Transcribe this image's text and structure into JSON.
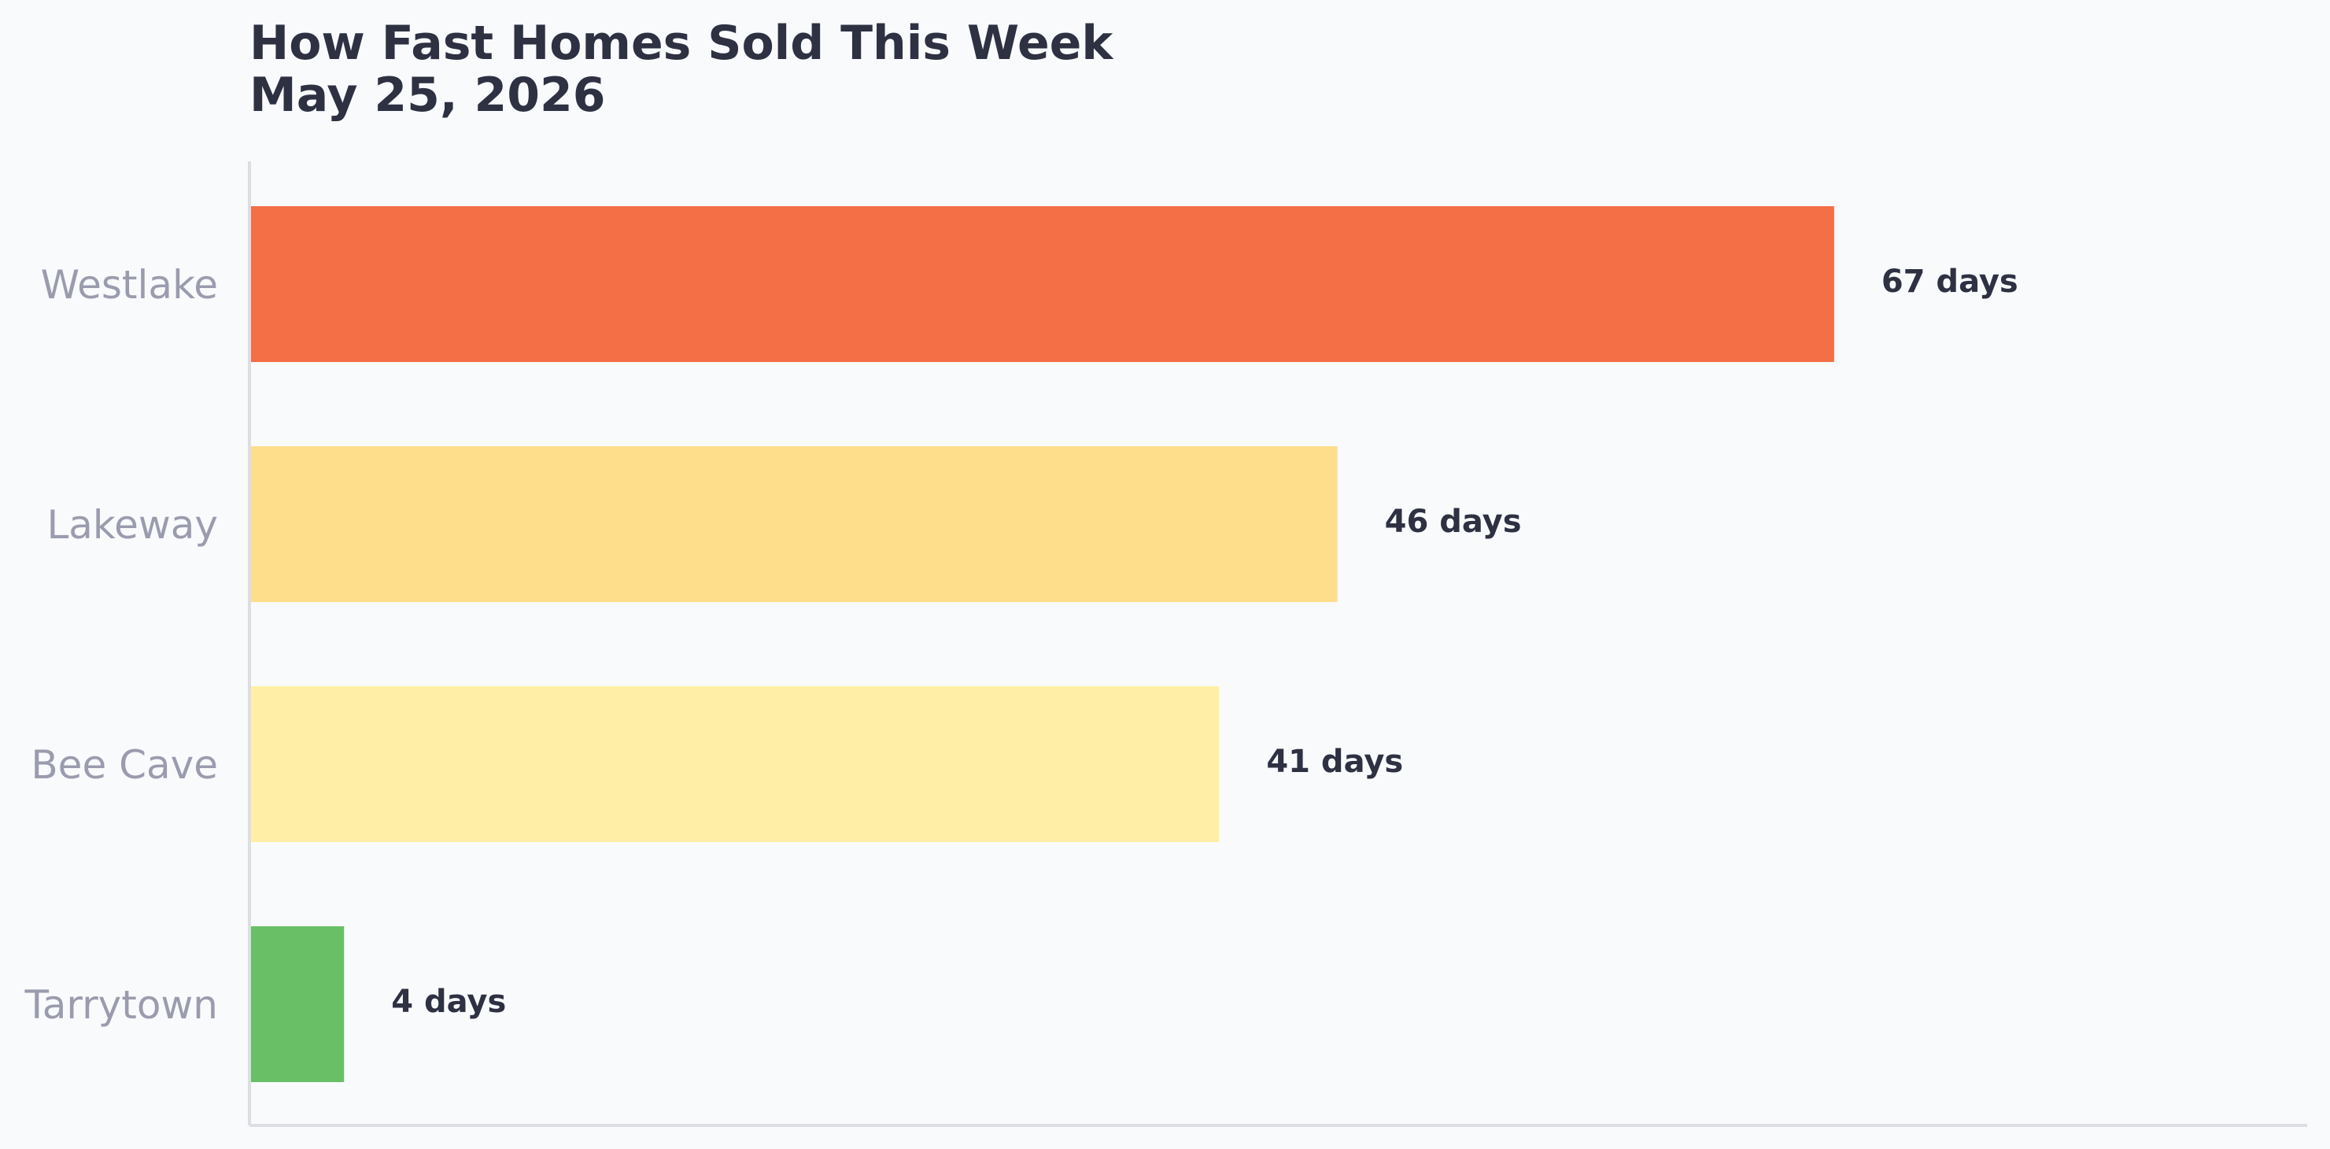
{
  "chart_data": {
    "type": "bar",
    "orientation": "horizontal",
    "title_lines": [
      "How Fast Homes Sold This Week",
      "May 25, 2026"
    ],
    "categories": [
      "Westlake",
      "Lakeway",
      "Bee Cave",
      "Tarrytown"
    ],
    "values": [
      67,
      46,
      41,
      4
    ],
    "value_labels": [
      "67 days",
      "46 days",
      "41 days",
      "4 days"
    ],
    "colors": [
      "#f46f46",
      "#fede8a",
      "#ffefa6",
      "#69bf65"
    ],
    "xlim": [
      0,
      87
    ],
    "xlabel": "",
    "ylabel": "",
    "grid": false,
    "legend": "none"
  },
  "colors": {
    "background": "#f8fafc",
    "title": "#2d3142",
    "category_label": "#9a9cae",
    "value_label": "#2d3142",
    "axis": "#dcdee3"
  }
}
